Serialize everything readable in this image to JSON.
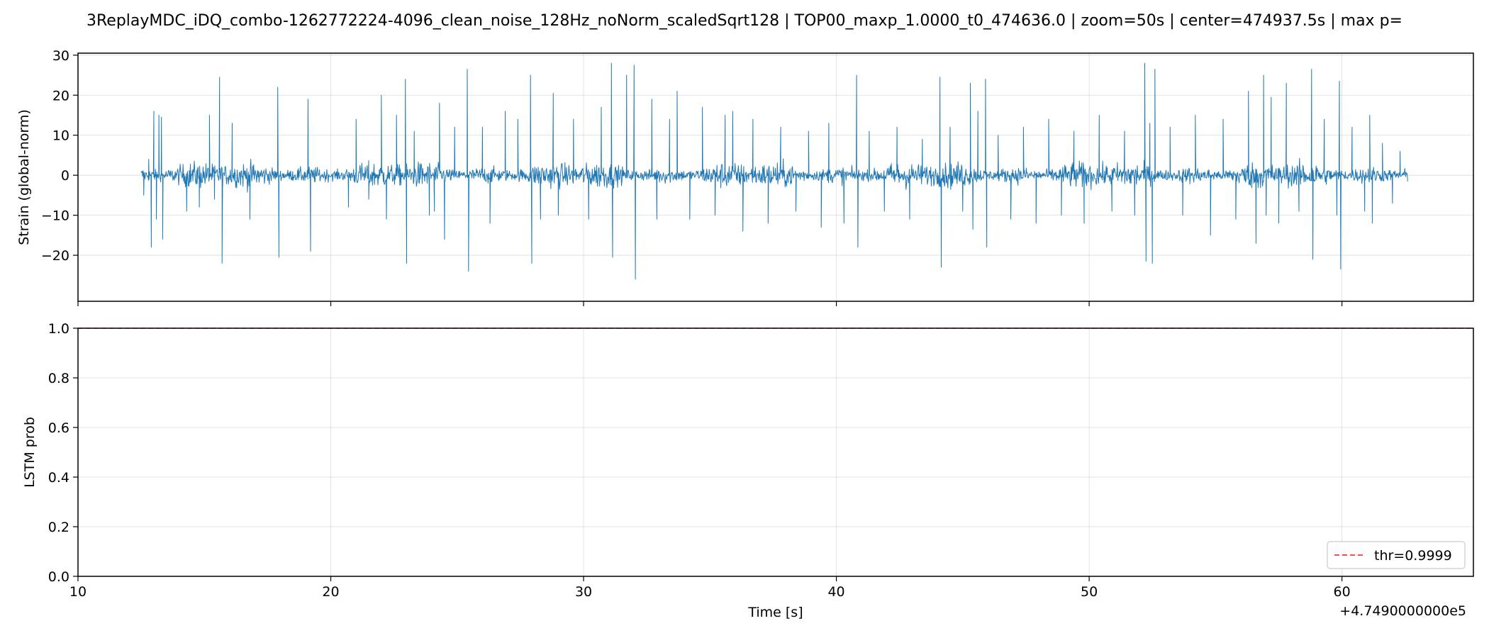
{
  "title": "3ReplayMDC_iDQ_combo-1262772224-4096_clean_noise_128Hz_noNorm_scaledSqrt128 | TOP00_maxp_1.0000_t0_474636.0 | zoom=50s | center=474937.5s | max p=",
  "colors": {
    "strain": "#1f77b4",
    "threshold": "#ff4d4d",
    "grid": "#b0b0b0",
    "axis": "#000000"
  },
  "chart_data": [
    {
      "type": "line",
      "panel": "top",
      "ylabel": "Strain (global-norm)",
      "xlim": [
        10,
        65.2
      ],
      "ylim": [
        -31.5,
        30.5
      ],
      "yticks": [
        -20,
        -10,
        0,
        10,
        20,
        30
      ],
      "ytick_labels": [
        "−20",
        "−10",
        "0",
        "10",
        "20",
        "30"
      ],
      "grid": true,
      "trace_x_range": [
        12.5,
        62.6
      ],
      "noise_sigma": 1.6,
      "spikes": [
        {
          "x": 12.6,
          "y": -5
        },
        {
          "x": 12.8,
          "y": 4
        },
        {
          "x": 12.9,
          "y": -18
        },
        {
          "x": 13.0,
          "y": 16
        },
        {
          "x": 13.1,
          "y": -11
        },
        {
          "x": 13.2,
          "y": 15
        },
        {
          "x": 13.3,
          "y": 14.5
        },
        {
          "x": 13.35,
          "y": -16
        },
        {
          "x": 14.3,
          "y": -9
        },
        {
          "x": 14.8,
          "y": -8
        },
        {
          "x": 15.2,
          "y": 15
        },
        {
          "x": 15.4,
          "y": -6
        },
        {
          "x": 15.6,
          "y": 24.5
        },
        {
          "x": 15.7,
          "y": -22
        },
        {
          "x": 16.1,
          "y": 13
        },
        {
          "x": 16.8,
          "y": -11
        },
        {
          "x": 17.9,
          "y": 22
        },
        {
          "x": 17.95,
          "y": -20.5
        },
        {
          "x": 19.1,
          "y": 19
        },
        {
          "x": 19.2,
          "y": -19
        },
        {
          "x": 20.7,
          "y": -8
        },
        {
          "x": 21.0,
          "y": 14
        },
        {
          "x": 21.5,
          "y": -6
        },
        {
          "x": 22.0,
          "y": 20
        },
        {
          "x": 22.2,
          "y": -11
        },
        {
          "x": 22.6,
          "y": 15
        },
        {
          "x": 22.95,
          "y": 24
        },
        {
          "x": 23.0,
          "y": -22
        },
        {
          "x": 23.3,
          "y": 11
        },
        {
          "x": 23.9,
          "y": -10
        },
        {
          "x": 24.1,
          "y": -9
        },
        {
          "x": 24.3,
          "y": 18
        },
        {
          "x": 24.5,
          "y": -16
        },
        {
          "x": 24.9,
          "y": 12
        },
        {
          "x": 25.4,
          "y": 26.5
        },
        {
          "x": 25.45,
          "y": -24
        },
        {
          "x": 26.0,
          "y": 12
        },
        {
          "x": 26.3,
          "y": -12
        },
        {
          "x": 26.9,
          "y": 16
        },
        {
          "x": 27.4,
          "y": 14
        },
        {
          "x": 27.9,
          "y": 25
        },
        {
          "x": 27.95,
          "y": -22
        },
        {
          "x": 28.3,
          "y": -11
        },
        {
          "x": 28.8,
          "y": 20.5
        },
        {
          "x": 29.0,
          "y": -10
        },
        {
          "x": 29.6,
          "y": 14
        },
        {
          "x": 30.2,
          "y": -11
        },
        {
          "x": 30.7,
          "y": 17
        },
        {
          "x": 31.1,
          "y": 28
        },
        {
          "x": 31.15,
          "y": -20.5
        },
        {
          "x": 31.7,
          "y": 25
        },
        {
          "x": 32.0,
          "y": 27.5
        },
        {
          "x": 32.05,
          "y": -26
        },
        {
          "x": 32.7,
          "y": 19
        },
        {
          "x": 32.9,
          "y": -11
        },
        {
          "x": 33.4,
          "y": 14
        },
        {
          "x": 33.7,
          "y": 21
        },
        {
          "x": 34.2,
          "y": -11
        },
        {
          "x": 34.7,
          "y": 17
        },
        {
          "x": 35.2,
          "y": -10
        },
        {
          "x": 35.6,
          "y": 15
        },
        {
          "x": 35.9,
          "y": 16
        },
        {
          "x": 36.3,
          "y": -14
        },
        {
          "x": 36.7,
          "y": 14
        },
        {
          "x": 37.3,
          "y": -12
        },
        {
          "x": 37.8,
          "y": 12
        },
        {
          "x": 38.4,
          "y": -9
        },
        {
          "x": 38.9,
          "y": 11
        },
        {
          "x": 39.4,
          "y": -13
        },
        {
          "x": 39.7,
          "y": 13
        },
        {
          "x": 40.3,
          "y": -12
        },
        {
          "x": 40.8,
          "y": 25
        },
        {
          "x": 40.85,
          "y": -18
        },
        {
          "x": 41.3,
          "y": 11
        },
        {
          "x": 41.9,
          "y": -9
        },
        {
          "x": 42.4,
          "y": 12
        },
        {
          "x": 42.9,
          "y": -11
        },
        {
          "x": 43.4,
          "y": 9
        },
        {
          "x": 44.1,
          "y": 24.5
        },
        {
          "x": 44.15,
          "y": -23
        },
        {
          "x": 44.5,
          "y": 12
        },
        {
          "x": 45.0,
          "y": -9
        },
        {
          "x": 45.3,
          "y": 23
        },
        {
          "x": 45.4,
          "y": -13.5
        },
        {
          "x": 45.6,
          "y": 16
        },
        {
          "x": 45.9,
          "y": 24
        },
        {
          "x": 45.95,
          "y": -18
        },
        {
          "x": 46.4,
          "y": 10
        },
        {
          "x": 46.9,
          "y": -11
        },
        {
          "x": 47.4,
          "y": 12
        },
        {
          "x": 47.9,
          "y": -12
        },
        {
          "x": 48.4,
          "y": 14
        },
        {
          "x": 48.9,
          "y": -10
        },
        {
          "x": 49.4,
          "y": 11
        },
        {
          "x": 49.8,
          "y": -12
        },
        {
          "x": 50.4,
          "y": 15
        },
        {
          "x": 50.9,
          "y": -9
        },
        {
          "x": 51.4,
          "y": 11
        },
        {
          "x": 51.8,
          "y": -10
        },
        {
          "x": 52.2,
          "y": 28
        },
        {
          "x": 52.25,
          "y": -21.5
        },
        {
          "x": 52.4,
          "y": 13
        },
        {
          "x": 52.5,
          "y": -22
        },
        {
          "x": 52.6,
          "y": 26.5
        },
        {
          "x": 53.2,
          "y": 12
        },
        {
          "x": 53.7,
          "y": -10
        },
        {
          "x": 54.2,
          "y": 15
        },
        {
          "x": 54.8,
          "y": -15
        },
        {
          "x": 55.3,
          "y": 14
        },
        {
          "x": 55.8,
          "y": -11
        },
        {
          "x": 56.3,
          "y": 21
        },
        {
          "x": 56.6,
          "y": -17
        },
        {
          "x": 56.9,
          "y": 25
        },
        {
          "x": 57.0,
          "y": -10
        },
        {
          "x": 57.2,
          "y": 19.5
        },
        {
          "x": 57.5,
          "y": -12
        },
        {
          "x": 57.8,
          "y": 23
        },
        {
          "x": 58.3,
          "y": -9
        },
        {
          "x": 58.8,
          "y": 26.5
        },
        {
          "x": 58.85,
          "y": -21
        },
        {
          "x": 59.3,
          "y": 14
        },
        {
          "x": 59.8,
          "y": -10
        },
        {
          "x": 59.9,
          "y": 23.5
        },
        {
          "x": 59.95,
          "y": -23.5
        },
        {
          "x": 60.4,
          "y": 12
        },
        {
          "x": 60.9,
          "y": -9
        },
        {
          "x": 61.1,
          "y": 15
        },
        {
          "x": 61.2,
          "y": -12
        },
        {
          "x": 61.6,
          "y": 8
        },
        {
          "x": 62.0,
          "y": -7
        },
        {
          "x": 62.3,
          "y": 6
        }
      ]
    },
    {
      "type": "line",
      "panel": "bottom",
      "ylabel": "LSTM prob",
      "xlabel": "Time [s]",
      "x_offset_label": "+4.7490000000e5",
      "xlim": [
        10,
        65.2
      ],
      "ylim": [
        0,
        1
      ],
      "xticks": [
        10,
        20,
        30,
        40,
        50,
        60
      ],
      "yticks": [
        0,
        0.2,
        0.4,
        0.6,
        0.8,
        1.0
      ],
      "ytick_labels": [
        "0.0",
        "0.2",
        "0.4",
        "0.6",
        "0.8",
        "1.0"
      ],
      "grid": true,
      "threshold": 0.9999,
      "legend": {
        "label": "thr=0.9999",
        "placement": "lower-right"
      }
    }
  ]
}
